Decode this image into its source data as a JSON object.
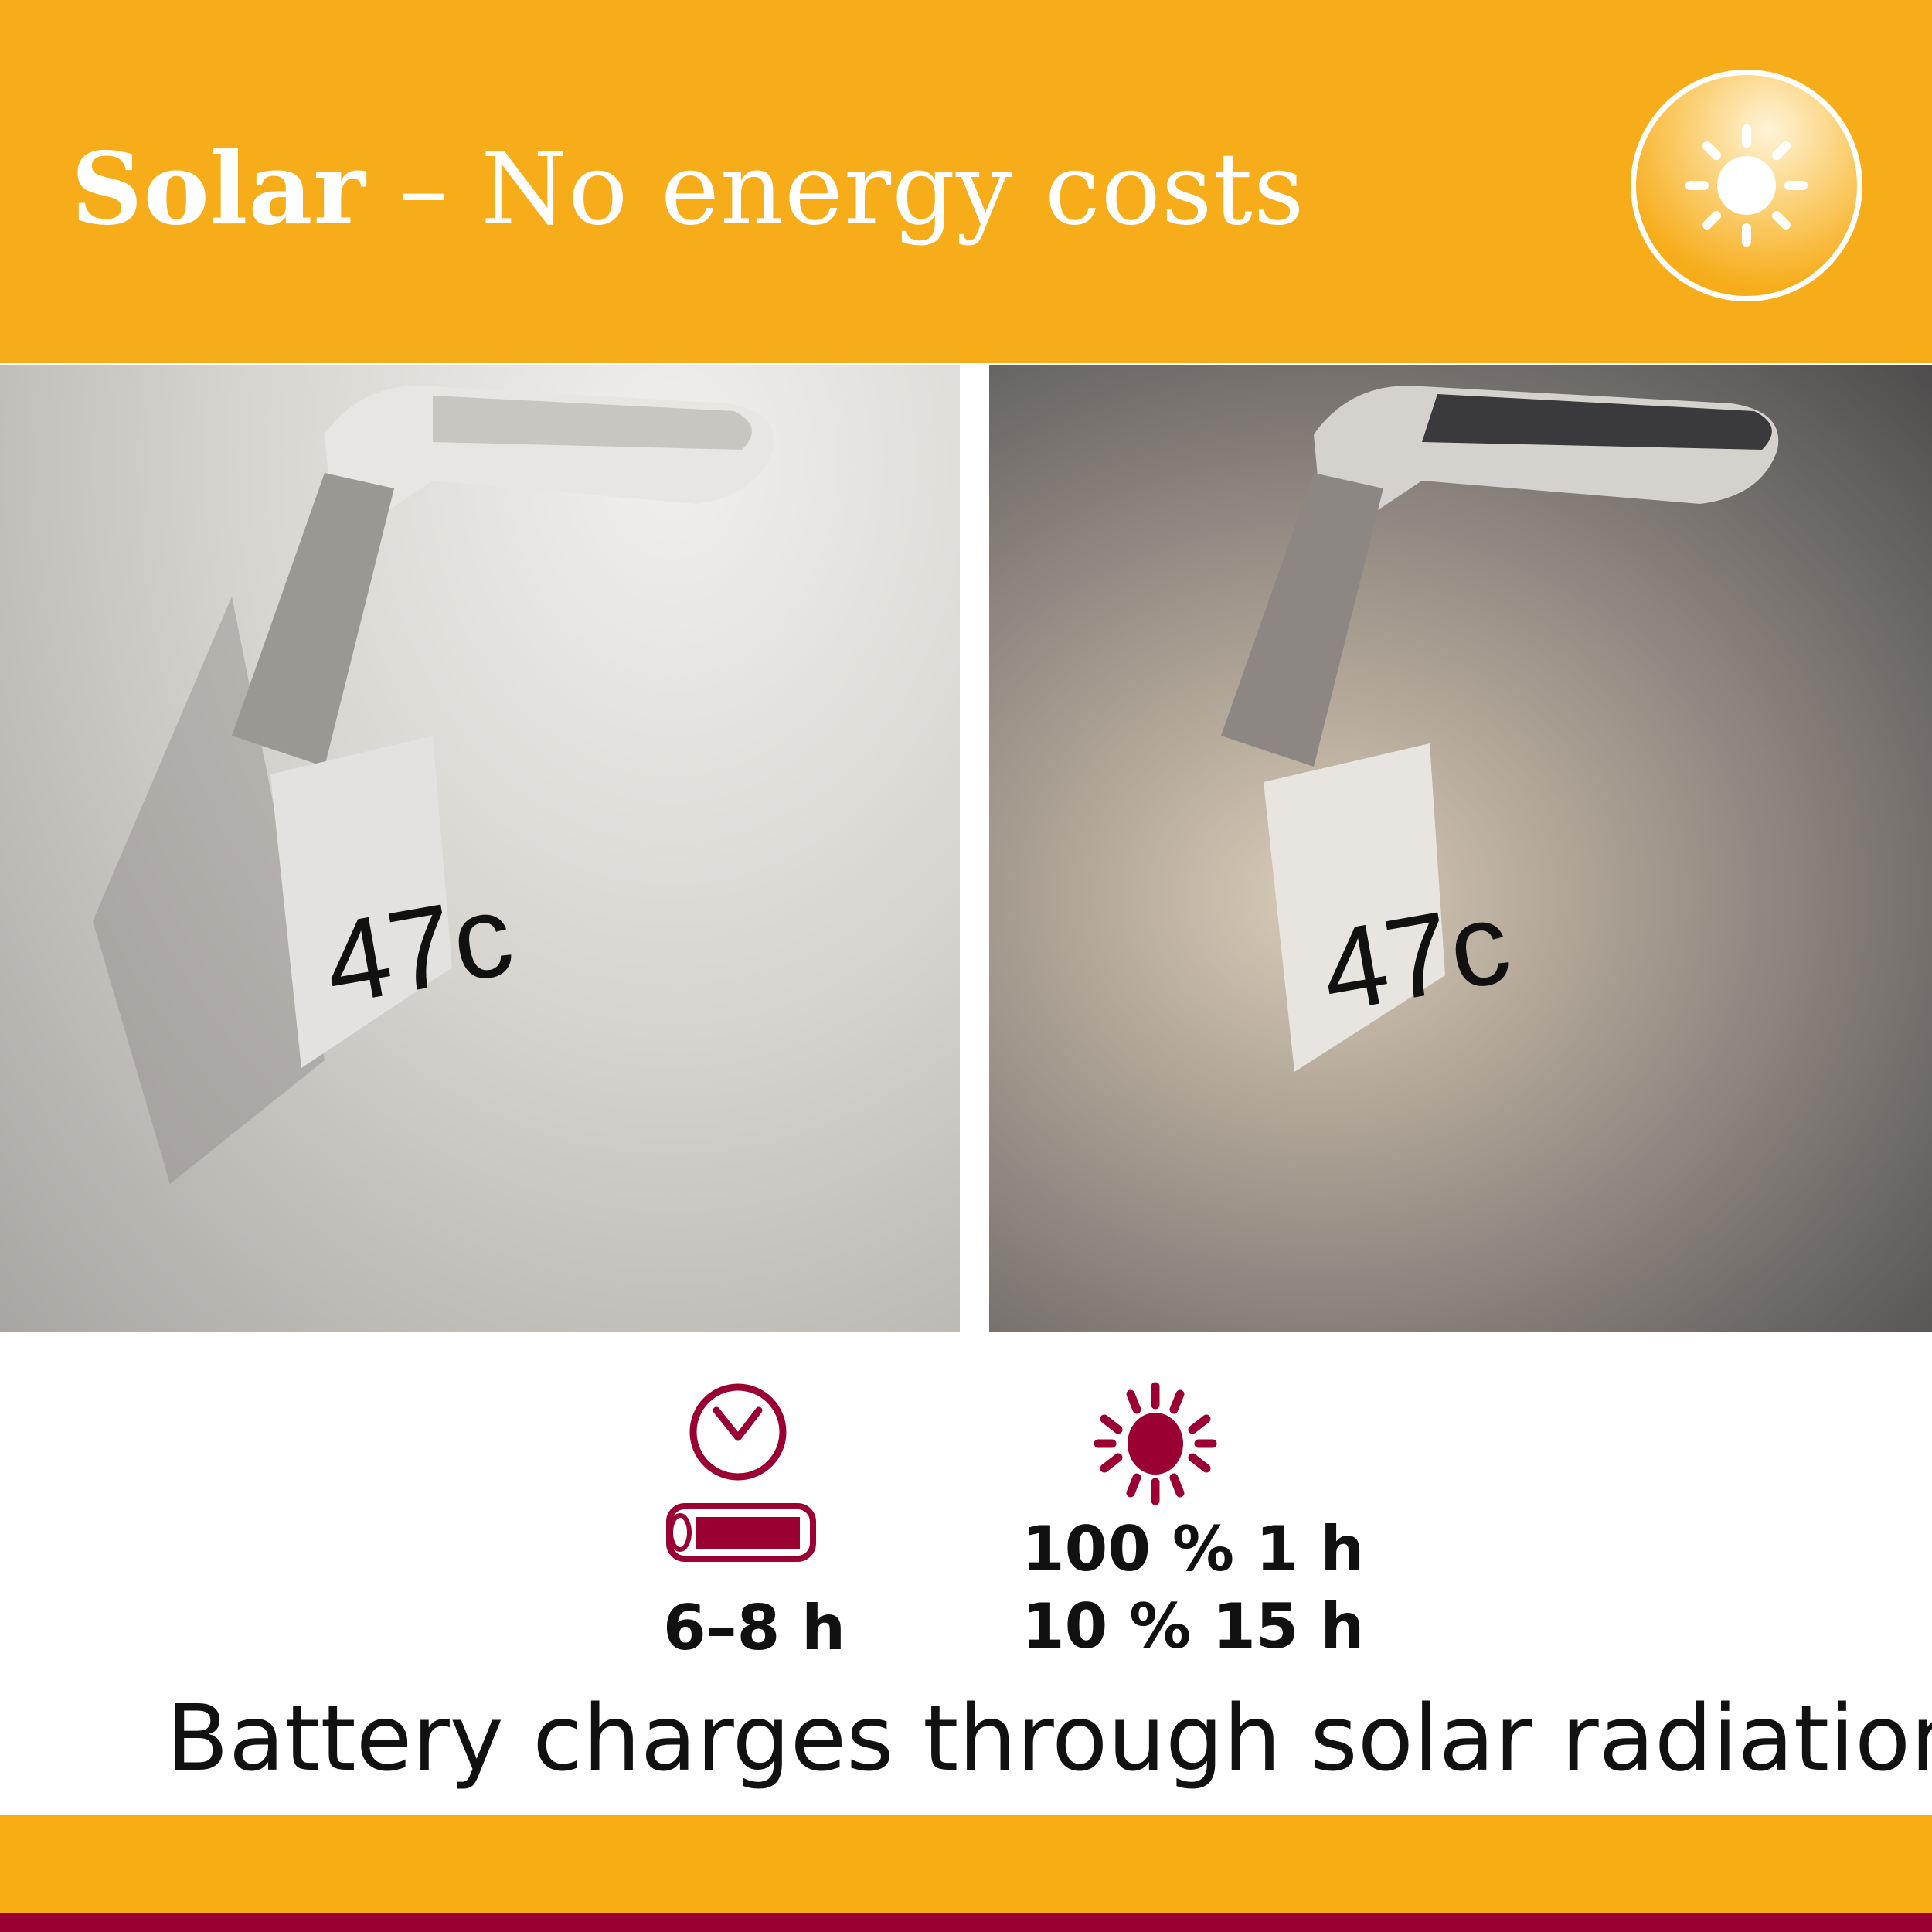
{
  "header": {
    "title_bold": "Solar",
    "title_rest": " – No energy costs",
    "badge_icon": "sun-icon"
  },
  "photos": {
    "day": {
      "house_number": "47c"
    },
    "night": {
      "house_number": "47c"
    }
  },
  "specs": {
    "runtime": {
      "icons": [
        "clock-icon",
        "battery-icon"
      ],
      "value": "6–8 h"
    },
    "charging": {
      "icon": "sun-icon",
      "line1": "100 % 1 h",
      "line2": "10 % 15 h"
    }
  },
  "tagline": "Battery charges through solar radiation",
  "colors": {
    "orange": "#F9AD14",
    "accent_red": "#9A0032"
  }
}
